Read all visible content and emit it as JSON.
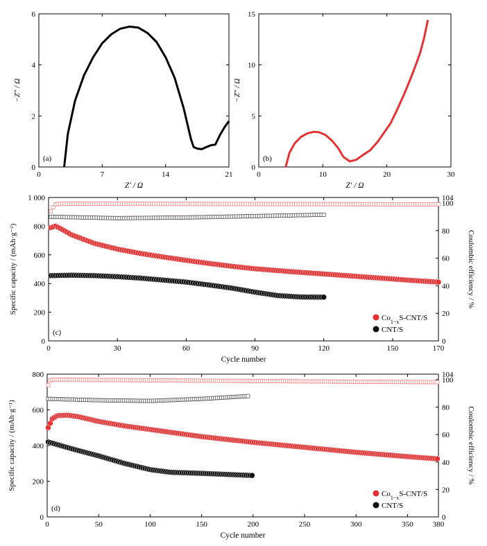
{
  "colors": {
    "red": "#e63232",
    "black": "#111111",
    "open_red": "#f08a8a",
    "open_black": "#555555"
  },
  "chart_data": [
    {
      "id": "a",
      "type": "line",
      "panel_label": "(a)",
      "xlabel": "Z′ / Ω",
      "ylabel": "−Z″ / Ω",
      "xlim": [
        0,
        21
      ],
      "ylim": [
        0,
        6
      ],
      "xticks": [
        "0",
        "7",
        "14",
        "21"
      ],
      "yticks": [
        "0",
        "2",
        "4",
        "6"
      ],
      "series": [
        {
          "color": "#000000",
          "x": [
            2.8,
            3.2,
            4.0,
            5.0,
            6.0,
            7.0,
            8.0,
            9.0,
            10.0,
            11.0,
            12.0,
            13.0,
            14.0,
            15.0,
            16.0,
            16.8,
            17.1,
            17.5,
            18.0,
            18.5,
            19.0,
            19.5,
            20.0,
            20.5,
            21.0
          ],
          "y": [
            0,
            1.3,
            2.6,
            3.6,
            4.3,
            4.85,
            5.2,
            5.42,
            5.5,
            5.46,
            5.25,
            4.9,
            4.3,
            3.5,
            2.3,
            1.1,
            0.78,
            0.72,
            0.7,
            0.78,
            0.85,
            0.88,
            1.25,
            1.55,
            1.8
          ]
        }
      ]
    },
    {
      "id": "b",
      "type": "line",
      "panel_label": "(b)",
      "xlabel": "Z′ / Ω",
      "ylabel": "−Z″ / Ω",
      "xlim": [
        0,
        30
      ],
      "ylim": [
        0,
        15
      ],
      "xticks": [
        "0",
        "10",
        "20",
        "30"
      ],
      "yticks": [
        "0",
        "5",
        "10",
        "15"
      ],
      "series": [
        {
          "color": "#e63232",
          "x": [
            4.2,
            4.8,
            5.6,
            6.6,
            7.6,
            8.6,
            9.4,
            10.4,
            11.4,
            12.4,
            13.2,
            14.2,
            15.2,
            16.2,
            17.4,
            18.6,
            19.6,
            20.6,
            21.6,
            22.6,
            23.6,
            24.4,
            25.2,
            25.8,
            26.4
          ],
          "y": [
            0,
            1.4,
            2.3,
            2.95,
            3.3,
            3.45,
            3.4,
            3.15,
            2.6,
            1.85,
            1.0,
            0.55,
            0.7,
            1.15,
            1.65,
            2.5,
            3.4,
            4.3,
            5.6,
            7.0,
            8.5,
            9.8,
            11.2,
            12.6,
            14.4
          ]
        }
      ]
    },
    {
      "id": "c",
      "type": "scatter",
      "panel_label": "(c)",
      "xlabel": "Cycle number",
      "ylabel": "Specific capacity / (mAh·g⁻¹)",
      "y2label": "Coulombic efficiency / %",
      "xlim": [
        0,
        170
      ],
      "ylim": [
        0,
        1000
      ],
      "y2lim": [
        0,
        104
      ],
      "xticks": [
        "0",
        "30",
        "60",
        "90",
        "120",
        "150",
        "170"
      ],
      "yticks": [
        "0",
        "200",
        "400",
        "600",
        "800",
        "1 000"
      ],
      "y2ticks": [
        "0",
        "20",
        "40",
        "60",
        "80",
        "100",
        "104"
      ],
      "legend": [
        "Co1−xS-CNT/S",
        "CNT/S"
      ],
      "legend_position": "bottom-right",
      "capacity_series": [
        {
          "name": "Co1−xS-CNT/S",
          "color": "#e63232",
          "x": [
            1,
            3,
            5,
            10,
            20,
            30,
            40,
            50,
            60,
            70,
            80,
            90,
            100,
            110,
            120,
            130,
            140,
            150,
            160,
            170
          ],
          "y": [
            790,
            800,
            785,
            740,
            680,
            640,
            610,
            585,
            562,
            540,
            520,
            503,
            490,
            478,
            467,
            455,
            443,
            432,
            420,
            410
          ]
        },
        {
          "name": "CNT/S",
          "color": "#111111",
          "x": [
            1,
            10,
            20,
            30,
            40,
            50,
            60,
            70,
            80,
            90,
            100,
            110,
            120
          ],
          "y": [
            455,
            458,
            455,
            448,
            438,
            424,
            410,
            390,
            368,
            340,
            316,
            306,
            305
          ]
        }
      ],
      "efficiency_series": [
        {
          "name": "Co1−xS-CNT/S",
          "color": "#f08a8a",
          "x": [
            1,
            2,
            3,
            5,
            170
          ],
          "y": [
            94,
            97,
            99,
            99.5,
            99
          ]
        },
        {
          "name": "CNT/S",
          "color": "#555555",
          "x": [
            1,
            30,
            60,
            90,
            120
          ],
          "y": [
            90,
            89,
            89.5,
            90.5,
            91.5
          ]
        }
      ]
    },
    {
      "id": "d",
      "type": "scatter",
      "panel_label": "(d)",
      "xlabel": "Cycle number",
      "ylabel": "Specific capacity / (mAh·g⁻¹)",
      "y2label": "Coulombic efficiency / %",
      "xlim": [
        0,
        380
      ],
      "ylim": [
        0,
        800
      ],
      "y2lim": [
        0,
        104
      ],
      "xticks": [
        "0",
        "50",
        "100",
        "150",
        "200",
        "250",
        "300",
        "350",
        "380"
      ],
      "yticks": [
        "0",
        "200",
        "400",
        "600",
        "800"
      ],
      "y2ticks": [
        "0",
        "20",
        "40",
        "60",
        "80",
        "100",
        "104"
      ],
      "legend": [
        "Co1−xS-CNT/S",
        "CNT/S"
      ],
      "legend_position": "bottom-right",
      "capacity_series": [
        {
          "name": "Co1−xS-CNT/S",
          "color": "#e63232",
          "x": [
            1,
            5,
            10,
            20,
            30,
            50,
            75,
            100,
            150,
            200,
            250,
            300,
            350,
            380
          ],
          "y": [
            500,
            550,
            568,
            570,
            562,
            535,
            510,
            490,
            450,
            418,
            390,
            362,
            338,
            325
          ]
        },
        {
          "name": "CNT/S",
          "color": "#111111",
          "x": [
            1,
            10,
            25,
            50,
            75,
            100,
            120,
            150,
            175,
            200
          ],
          "y": [
            420,
            405,
            380,
            342,
            300,
            265,
            250,
            244,
            238,
            232
          ]
        }
      ],
      "efficiency_series": [
        {
          "name": "Co1−xS-CNT/S",
          "color": "#f08a8a",
          "x": [
            1,
            2,
            5,
            100,
            200,
            300,
            380
          ],
          "y": [
            96,
            99,
            100,
            99.5,
            99,
            98.5,
            98.2
          ]
        },
        {
          "name": "CNT/S",
          "color": "#555555",
          "x": [
            1,
            50,
            100,
            150,
            195
          ],
          "y": [
            86,
            85,
            84.5,
            86,
            88
          ]
        }
      ]
    }
  ]
}
